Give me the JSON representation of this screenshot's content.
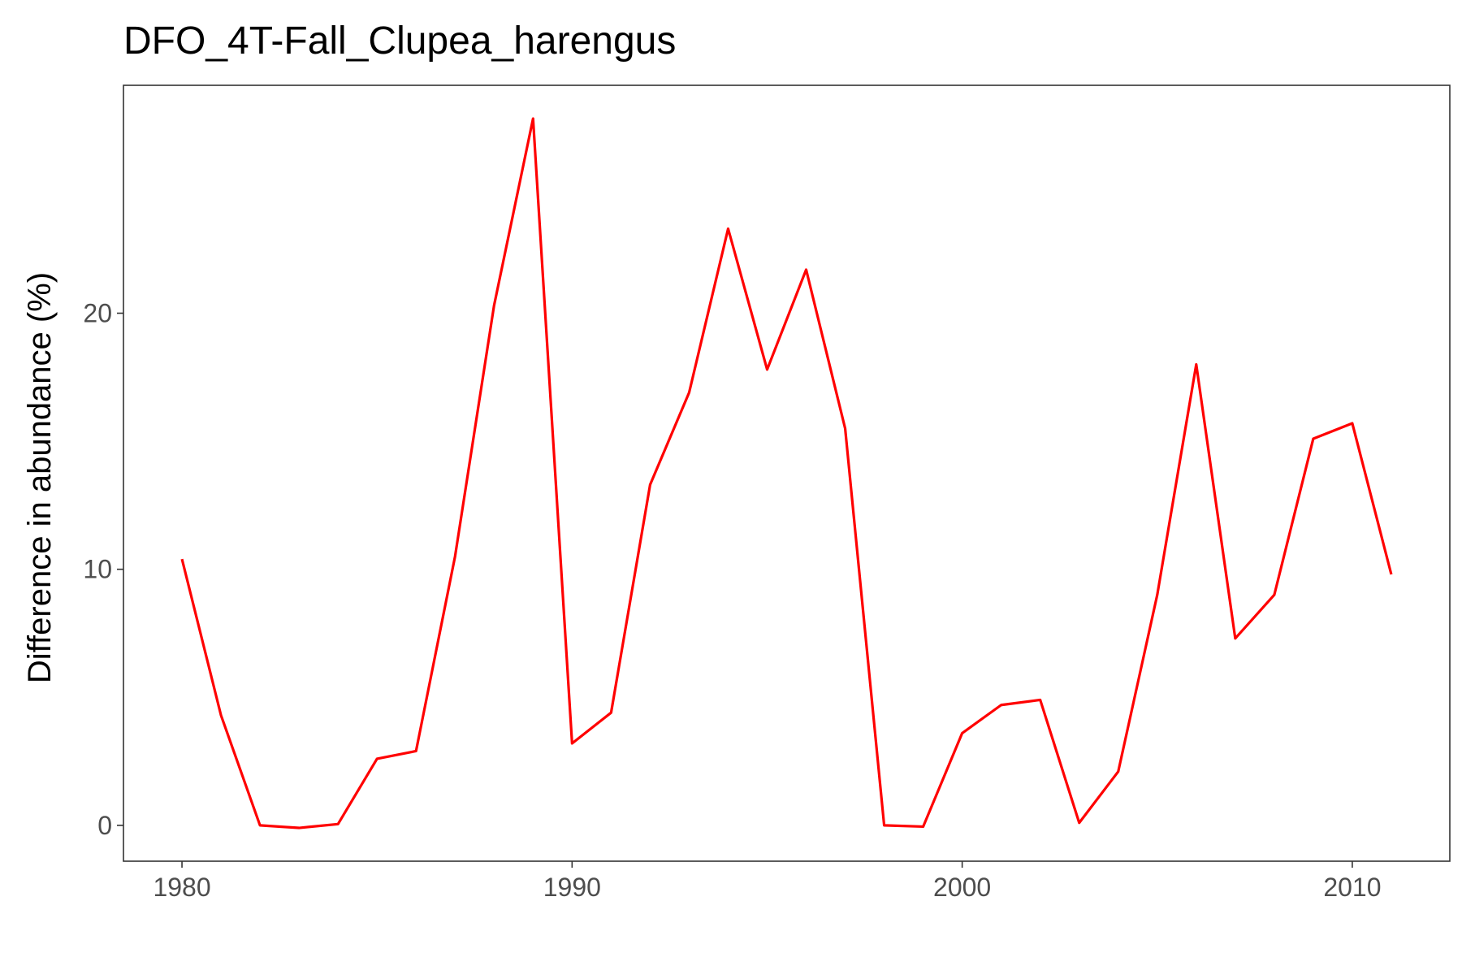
{
  "chart_data": {
    "type": "line",
    "title": "DFO_4T-Fall_Clupea_harengus",
    "xlabel": "",
    "ylabel": "Difference in abundance (%)",
    "xlim": [
      1978.5,
      2012.5
    ],
    "ylim": [
      -1.4,
      28.9
    ],
    "xticks": [
      1980,
      1990,
      2000,
      2010
    ],
    "yticks": [
      0,
      10,
      20
    ],
    "grid": false,
    "legend": "none",
    "line_color": "#ff0000",
    "series": [
      {
        "x": [
          1980,
          1981,
          1982,
          1983,
          1984,
          1985,
          1986,
          1987,
          1988,
          1989,
          1990,
          1991,
          1992,
          1993,
          1994,
          1995,
          1996,
          1997,
          1998,
          1999,
          2000,
          2001,
          2002,
          2003,
          2004,
          2005,
          2006,
          2007,
          2008,
          2009,
          2010,
          2011
        ],
        "y": [
          10.4,
          4.3,
          0.0,
          -0.1,
          0.05,
          2.6,
          2.9,
          10.5,
          20.3,
          27.6,
          3.2,
          4.4,
          13.3,
          16.9,
          23.3,
          17.8,
          21.7,
          15.5,
          0.0,
          -0.05,
          3.6,
          4.7,
          4.9,
          0.1,
          2.1,
          9.0,
          18.0,
          7.3,
          9.0,
          15.1,
          15.7,
          9.8
        ]
      }
    ]
  }
}
